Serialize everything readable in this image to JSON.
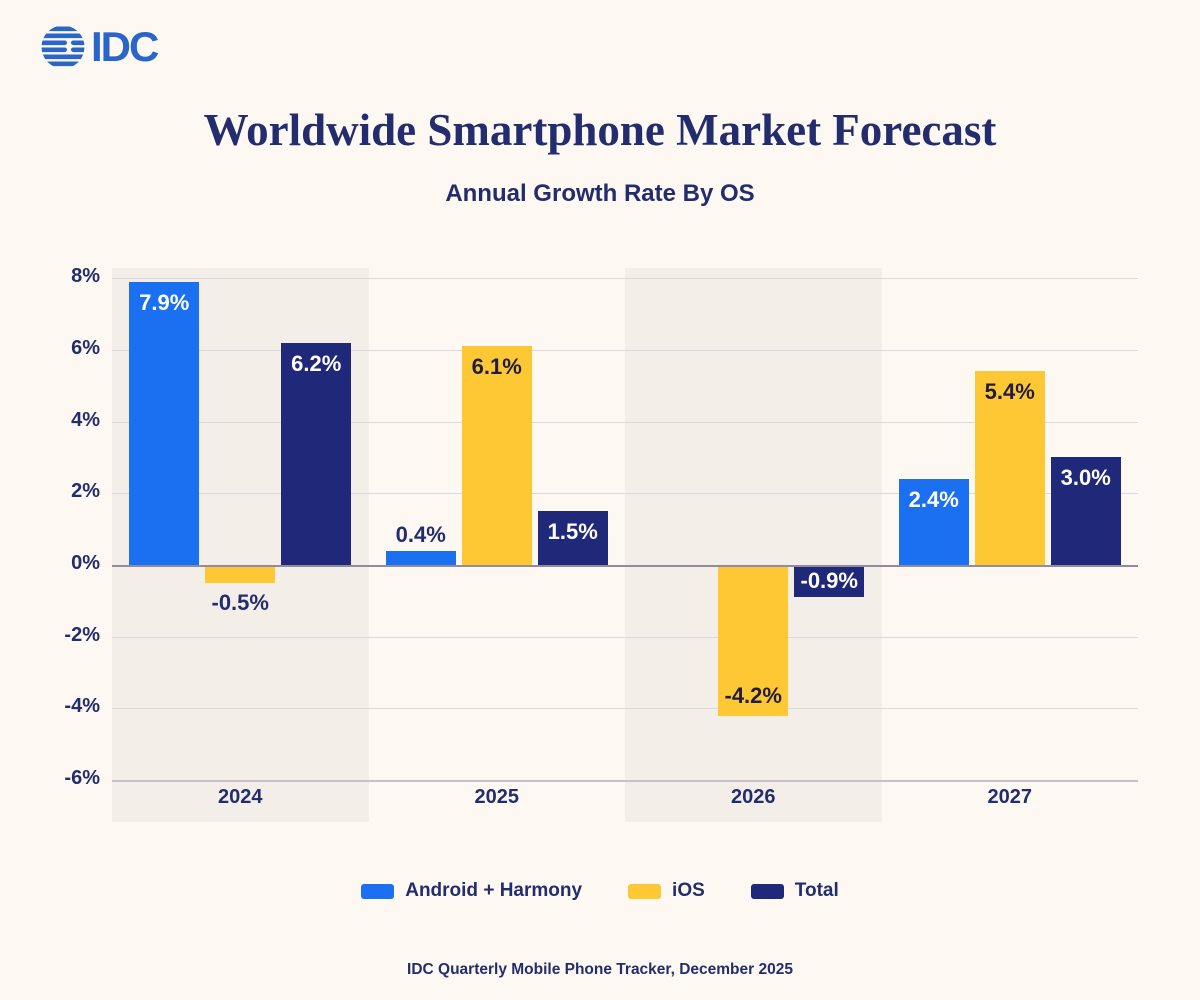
{
  "logo": {
    "text": "IDC",
    "icon": "globe-stripes-icon",
    "color": "#2a65ca"
  },
  "header": {
    "title": "Worldwide Smartphone Market Forecast",
    "subtitle": "Annual Growth Rate By OS"
  },
  "chart_data": {
    "type": "bar",
    "title": "Worldwide Smartphone Market Forecast",
    "subtitle": "Annual Growth Rate By OS",
    "categories": [
      "2024",
      "2025",
      "2026",
      "2027"
    ],
    "series": [
      {
        "name": "Android + Harmony",
        "color": "#1b70f1",
        "values": [
          7.9,
          0.4,
          0.0,
          2.4
        ],
        "labels": [
          {
            "text": "7.9%",
            "pos": "inside-top",
            "color": "#ffffff"
          },
          {
            "text": "0.4%",
            "pos": "above",
            "color": "#232d6e"
          },
          {
            "text": "",
            "pos": "none",
            "color": ""
          },
          {
            "text": "2.4%",
            "pos": "inside-top",
            "color": "#ffffff"
          }
        ]
      },
      {
        "name": "iOS",
        "color": "#fdc834",
        "values": [
          -0.5,
          6.1,
          -4.2,
          5.4
        ],
        "labels": [
          {
            "text": "-0.5%",
            "pos": "below",
            "color": "#232d6e"
          },
          {
            "text": "6.1%",
            "pos": "inside-top",
            "color": "#211d41"
          },
          {
            "text": "-4.2%",
            "pos": "inside-bottom",
            "color": "#211d41"
          },
          {
            "text": "5.4%",
            "pos": "inside-top",
            "color": "#211d41"
          }
        ]
      },
      {
        "name": "Total",
        "color": "#20287a",
        "values": [
          6.2,
          1.5,
          -0.9,
          3.0
        ],
        "labels": [
          {
            "text": "6.2%",
            "pos": "inside-top",
            "color": "#ffffff"
          },
          {
            "text": "1.5%",
            "pos": "inside-top",
            "color": "#ffffff"
          },
          {
            "text": "-0.9%",
            "pos": "inside",
            "color": "#ffffff"
          },
          {
            "text": "3.0%",
            "pos": "inside-top",
            "color": "#ffffff"
          }
        ]
      }
    ],
    "ylim": [
      -6,
      8
    ],
    "yticks": [
      8,
      6,
      4,
      2,
      0,
      -2,
      -4,
      -6
    ],
    "ytick_labels": [
      "8%",
      "6%",
      "4%",
      "2%",
      "0%",
      "-2%",
      "-4%",
      "-6%"
    ],
    "grid": true,
    "legend_position": "bottom",
    "highlight_bands": [
      "2024",
      "2026"
    ],
    "unit": "%"
  },
  "footer": {
    "source_note": "IDC Quarterly Mobile Phone Tracker, December 2025"
  },
  "colors": {
    "background": "#fdf8f2",
    "band": "#f4eee8",
    "gridline": "#ddd8de",
    "zero_line": "#8f8c9f",
    "axis_line": "#c6c1ca",
    "text_navy": "#232d6e",
    "android_blue": "#1b70f1",
    "ios_yellow": "#fdc834",
    "total_navy": "#20287a",
    "logo_blue": "#2a65ca"
  }
}
